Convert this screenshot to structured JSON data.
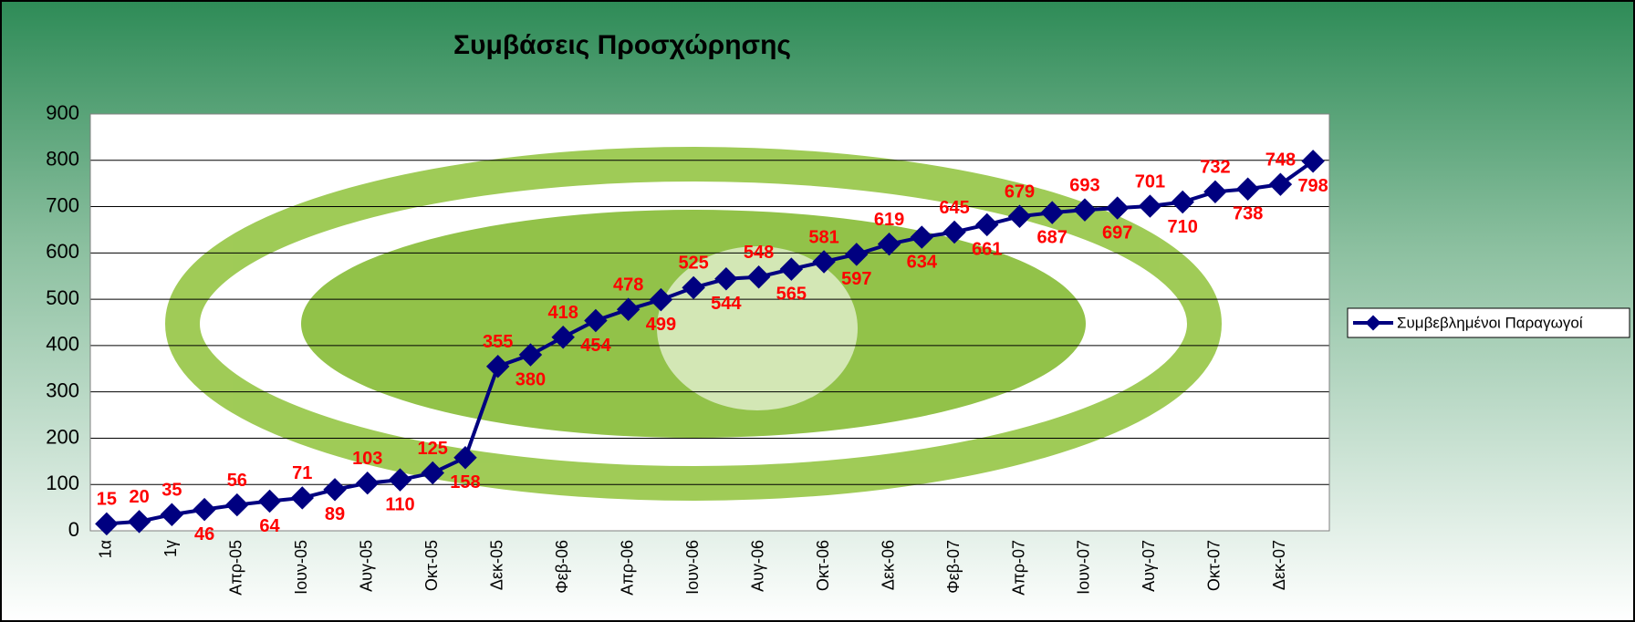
{
  "chart_data": {
    "type": "line",
    "title": "Συμβάσεις Προσχώρησης",
    "categories": [
      "1α",
      null,
      "1γ",
      null,
      "Απρ-05",
      null,
      "Ιουν-05",
      null,
      "Αυγ-05",
      null,
      "Οκτ-05",
      null,
      "Δεκ-05",
      null,
      "Φεβ-06",
      null,
      "Απρ-06",
      null,
      "Ιουν-06",
      null,
      "Αυγ-06",
      null,
      "Οκτ-06",
      null,
      "Δεκ-06",
      null,
      "Φεβ-07",
      null,
      "Απρ-07",
      null,
      "Ιουν-07",
      null,
      "Αυγ-07",
      null,
      "Οκτ-07",
      null,
      "Δεκ-07",
      null
    ],
    "series": [
      {
        "name": "Συμβεβλημένοι Παραγωγοί",
        "color": "#000080",
        "values": [
          15,
          20,
          35,
          46,
          56,
          64,
          71,
          89,
          103,
          110,
          125,
          158,
          355,
          380,
          418,
          454,
          478,
          499,
          525,
          544,
          548,
          565,
          581,
          597,
          619,
          634,
          645,
          661,
          679,
          687,
          693,
          697,
          701,
          710,
          732,
          738,
          748,
          798
        ]
      }
    ],
    "ylim": [
      0,
      900
    ],
    "yticks": [
      0,
      100,
      200,
      300,
      400,
      500,
      600,
      700,
      800,
      900
    ],
    "grid": true,
    "legend": "right",
    "label_color": "#ff0000"
  }
}
